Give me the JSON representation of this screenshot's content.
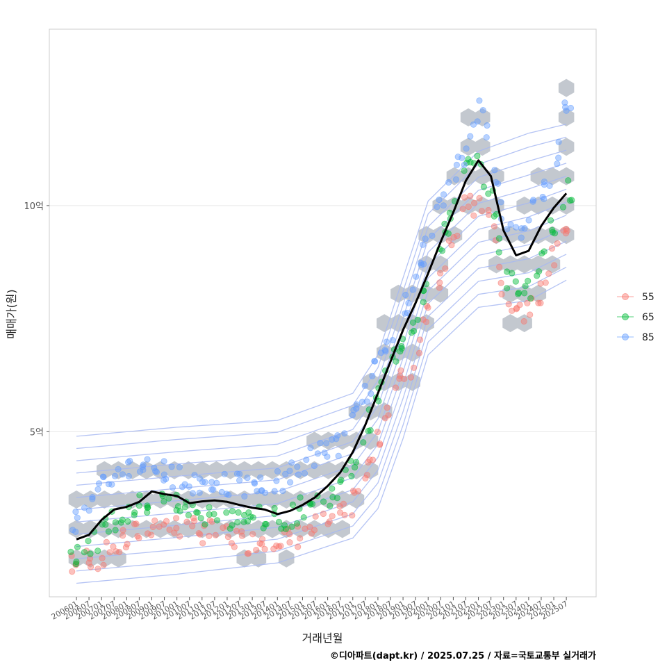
{
  "chart_data": {
    "type": "scatter",
    "xlabel": "거래년월",
    "ylabel": "매매가(원)",
    "caption": "©디아파트(dapt.kr) / 2025.07.25 / 자료=국토교통부 실거래가",
    "x_ticks": [
      "200601",
      "200607",
      "200701",
      "200707",
      "200801",
      "200807",
      "200901",
      "200907",
      "201001",
      "201007",
      "201101",
      "201107",
      "201201",
      "201207",
      "201301",
      "201307",
      "201401",
      "201407",
      "201501",
      "201507",
      "201601",
      "201607",
      "201701",
      "201707",
      "201801",
      "201807",
      "201901",
      "201907",
      "202001",
      "202007",
      "202101",
      "202107",
      "202201",
      "202207",
      "202301",
      "202307",
      "202401",
      "202407",
      "202501",
      "202507"
    ],
    "y_ticks": [
      {
        "value": 5,
        "label": "5억"
      },
      {
        "value": 10,
        "label": "10억"
      }
    ],
    "ylim": [
      1.35,
      13.9
    ],
    "grid": true,
    "legend_position": "right",
    "series_colors": {
      "55": "#F8766D",
      "65": "#00BA38",
      "85": "#619CFF"
    },
    "legend": [
      {
        "name": "55",
        "color": "#F8766D"
      },
      {
        "name": "65",
        "color": "#00BA38"
      },
      {
        "name": "85",
        "color": "#619CFF"
      }
    ],
    "trend_line": {
      "color": "#000000",
      "points": [
        [
          "200601",
          2.62
        ],
        [
          "200607",
          2.72
        ],
        [
          "200701",
          3.05
        ],
        [
          "200707",
          3.28
        ],
        [
          "200801",
          3.34
        ],
        [
          "200807",
          3.45
        ],
        [
          "200901",
          3.68
        ],
        [
          "200907",
          3.62
        ],
        [
          "201001",
          3.58
        ],
        [
          "201007",
          3.42
        ],
        [
          "201101",
          3.46
        ],
        [
          "201107",
          3.48
        ],
        [
          "201201",
          3.45
        ],
        [
          "201207",
          3.38
        ],
        [
          "201301",
          3.32
        ],
        [
          "201307",
          3.28
        ],
        [
          "201401",
          3.18
        ],
        [
          "201407",
          3.25
        ],
        [
          "201501",
          3.38
        ],
        [
          "201507",
          3.55
        ],
        [
          "201601",
          3.8
        ],
        [
          "201607",
          4.1
        ],
        [
          "201701",
          4.55
        ],
        [
          "201707",
          5.15
        ],
        [
          "201801",
          5.85
        ],
        [
          "201807",
          6.55
        ],
        [
          "201901",
          7.25
        ],
        [
          "201907",
          7.85
        ],
        [
          "202001",
          8.5
        ],
        [
          "202007",
          9.2
        ],
        [
          "202101",
          9.85
        ],
        [
          "202107",
          10.55
        ],
        [
          "202201",
          11.0
        ],
        [
          "202207",
          10.65
        ],
        [
          "202301",
          9.45
        ],
        [
          "202307",
          8.9
        ],
        [
          "202401",
          9.0
        ],
        [
          "202407",
          9.55
        ],
        [
          "202501",
          9.95
        ],
        [
          "202507",
          10.27
        ]
      ]
    },
    "density_bands": [
      {
        "points": [
          [
            "200601",
            1.65
          ],
          [
            "201001",
            1.85
          ],
          [
            "201401",
            2.1
          ],
          [
            "201701",
            2.65
          ],
          [
            "201801",
            3.3
          ],
          [
            "201901",
            4.85
          ],
          [
            "202001",
            6.7
          ],
          [
            "202201",
            7.75
          ],
          [
            "202401",
            7.9
          ],
          [
            "202507",
            8.35
          ]
        ]
      },
      {
        "points": [
          [
            "200601",
            4.9
          ],
          [
            "201001",
            5.1
          ],
          [
            "201401",
            5.25
          ],
          [
            "201701",
            5.85
          ],
          [
            "201801",
            6.7
          ],
          [
            "201901",
            8.4
          ],
          [
            "202001",
            10.1
          ],
          [
            "202201",
            11.2
          ],
          [
            "202401",
            11.6
          ],
          [
            "202507",
            11.8
          ]
        ]
      }
    ],
    "hexbin_y": [
      1.55,
      2.2,
      2.85,
      3.5,
      4.15,
      4.8,
      5.45,
      6.1,
      6.75,
      7.4,
      8.05,
      8.7,
      9.35,
      10.0,
      10.65,
      11.3,
      11.95,
      12.6,
      13.25
    ],
    "series": [
      {
        "name": "55",
        "points": [
          [
            "200601",
            2.05
          ],
          [
            "200607",
            2.25
          ],
          [
            "200701",
            2.2
          ],
          [
            "200707",
            2.45
          ],
          [
            "200801",
            2.6
          ],
          [
            "200807",
            2.8
          ],
          [
            "200901",
            2.95
          ],
          [
            "200907",
            2.95
          ],
          [
            "201001",
            2.9
          ],
          [
            "201007",
            2.85
          ],
          [
            "201101",
            2.8
          ],
          [
            "201107",
            2.75
          ],
          [
            "201201",
            2.7
          ],
          [
            "201207",
            2.6
          ],
          [
            "201301",
            2.55
          ],
          [
            "201307",
            2.65
          ],
          [
            "201401",
            2.7
          ],
          [
            "201407",
            2.6
          ],
          [
            "201501",
            2.75
          ],
          [
            "201507",
            2.9
          ],
          [
            "201601",
            3.0
          ],
          [
            "201607",
            3.1
          ],
          [
            "201701",
            3.4
          ],
          [
            "201707",
            4.0
          ],
          [
            "201801",
            4.75
          ],
          [
            "201807",
            5.8
          ],
          [
            "201901",
            6.2
          ],
          [
            "201907",
            6.5
          ],
          [
            "202001",
            7.9
          ],
          [
            "202007",
            8.5
          ],
          [
            "202101",
            9.4
          ],
          [
            "202107",
            10.0
          ],
          [
            "202201",
            9.9
          ],
          [
            "202207",
            10.0
          ],
          [
            "202301",
            7.8
          ],
          [
            "202307",
            7.7
          ],
          [
            "202401",
            7.6
          ],
          [
            "202407",
            8.1
          ],
          [
            "202501",
            8.9
          ],
          [
            "202507",
            9.6
          ]
        ]
      },
      {
        "name": "65",
        "points": [
          [
            "200601",
            2.35
          ],
          [
            "200607",
            2.5
          ],
          [
            "200701",
            2.7
          ],
          [
            "200707",
            3.05
          ],
          [
            "200801",
            3.2
          ],
          [
            "200807",
            3.35
          ],
          [
            "200901",
            3.45
          ],
          [
            "200907",
            3.45
          ],
          [
            "201001",
            3.4
          ],
          [
            "201007",
            3.3
          ],
          [
            "201101",
            3.2
          ],
          [
            "201107",
            3.15
          ],
          [
            "201201",
            3.1
          ],
          [
            "201207",
            3.05
          ],
          [
            "201301",
            3.05
          ],
          [
            "201307",
            3.1
          ],
          [
            "201401",
            3.05
          ],
          [
            "201407",
            3.15
          ],
          [
            "201501",
            3.3
          ],
          [
            "201507",
            3.45
          ],
          [
            "201601",
            3.6
          ],
          [
            "201607",
            3.75
          ],
          [
            "201701",
            4.2
          ],
          [
            "201707",
            5.0
          ],
          [
            "201801",
            5.75
          ],
          [
            "201807",
            6.5
          ],
          [
            "201901",
            7.1
          ],
          [
            "201907",
            7.5
          ],
          [
            "202001",
            8.4
          ],
          [
            "202007",
            9.1
          ],
          [
            "202101",
            9.9
          ],
          [
            "202107",
            10.8
          ],
          [
            "202201",
            10.9
          ],
          [
            "202207",
            10.4
          ],
          [
            "202301",
            8.4
          ],
          [
            "202307",
            8.3
          ],
          [
            "202401",
            8.1
          ],
          [
            "202407",
            8.9
          ],
          [
            "202501",
            9.6
          ],
          [
            "202507",
            10.35
          ]
        ]
      },
      {
        "name": "85",
        "points": [
          [
            "200601",
            3.0
          ],
          [
            "200607",
            3.3
          ],
          [
            "200701",
            3.7
          ],
          [
            "200707",
            4.1
          ],
          [
            "200801",
            4.2
          ],
          [
            "200807",
            4.3
          ],
          [
            "200901",
            4.2
          ],
          [
            "200907",
            4.1
          ],
          [
            "201001",
            4.0
          ],
          [
            "201007",
            3.9
          ],
          [
            "201101",
            3.9
          ],
          [
            "201107",
            3.85
          ],
          [
            "201201",
            3.8
          ],
          [
            "201207",
            3.8
          ],
          [
            "201301",
            3.75
          ],
          [
            "201307",
            3.8
          ],
          [
            "201401",
            3.9
          ],
          [
            "201407",
            4.05
          ],
          [
            "201501",
            4.25
          ],
          [
            "201507",
            4.5
          ],
          [
            "201601",
            4.6
          ],
          [
            "201607",
            4.75
          ],
          [
            "201701",
            5.2
          ],
          [
            "201707",
            5.8
          ],
          [
            "201801",
            6.5
          ],
          [
            "201807",
            7.2
          ],
          [
            "201901",
            7.7
          ],
          [
            "201907",
            8.2
          ],
          [
            "202001",
            9.4
          ],
          [
            "202007",
            10.0
          ],
          [
            "202101",
            10.6
          ],
          [
            "202107",
            11.2
          ],
          [
            "202201",
            12.2
          ],
          [
            "202207",
            11.5
          ],
          [
            "202301",
            9.5
          ],
          [
            "202307",
            9.3
          ],
          [
            "202401",
            9.8
          ],
          [
            "202407",
            10.3
          ],
          [
            "202501",
            10.6
          ],
          [
            "202507",
            12.3
          ]
        ]
      }
    ]
  }
}
